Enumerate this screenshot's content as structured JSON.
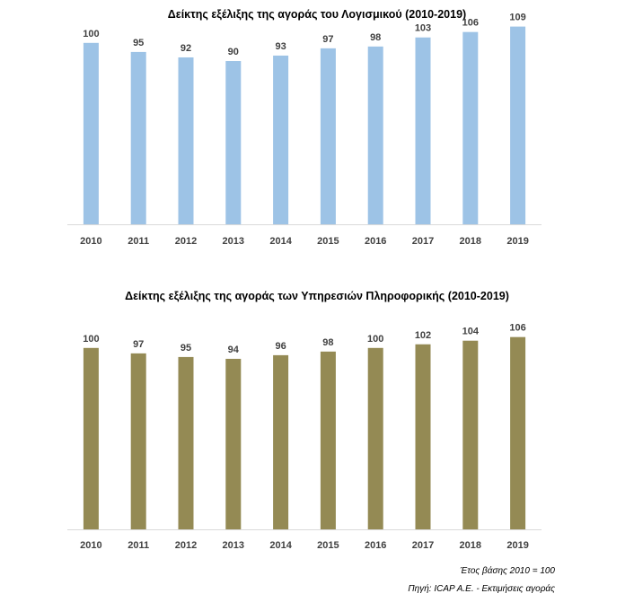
{
  "chart_data": [
    {
      "type": "bar",
      "title": "Δείκτης εξέλιξης της αγοράς του Λογισμικού (2010-2019)",
      "categories": [
        "2010",
        "2011",
        "2012",
        "2013",
        "2014",
        "2015",
        "2016",
        "2017",
        "2018",
        "2019"
      ],
      "values": [
        100,
        95,
        92,
        90,
        93,
        97,
        98,
        103,
        106,
        109
      ],
      "color": "#9dc3e6",
      "xlabel": "",
      "ylabel": ""
    },
    {
      "type": "bar",
      "title": "Δείκτης εξέλιξης της αγοράς των Υπηρεσιών Πληροφορικής (2010-2019)",
      "categories": [
        "2010",
        "2011",
        "2012",
        "2013",
        "2014",
        "2015",
        "2016",
        "2017",
        "2018",
        "2019"
      ],
      "values": [
        100,
        97,
        95,
        94,
        96,
        98,
        100,
        102,
        104,
        106
      ],
      "color": "#948a54",
      "xlabel": "",
      "ylabel": ""
    }
  ],
  "notes": {
    "base_year": "Έτος βάσης 2010 = 100",
    "source": "Πηγή: ICAP A.E. - Εκτιμήσεις αγοράς"
  }
}
